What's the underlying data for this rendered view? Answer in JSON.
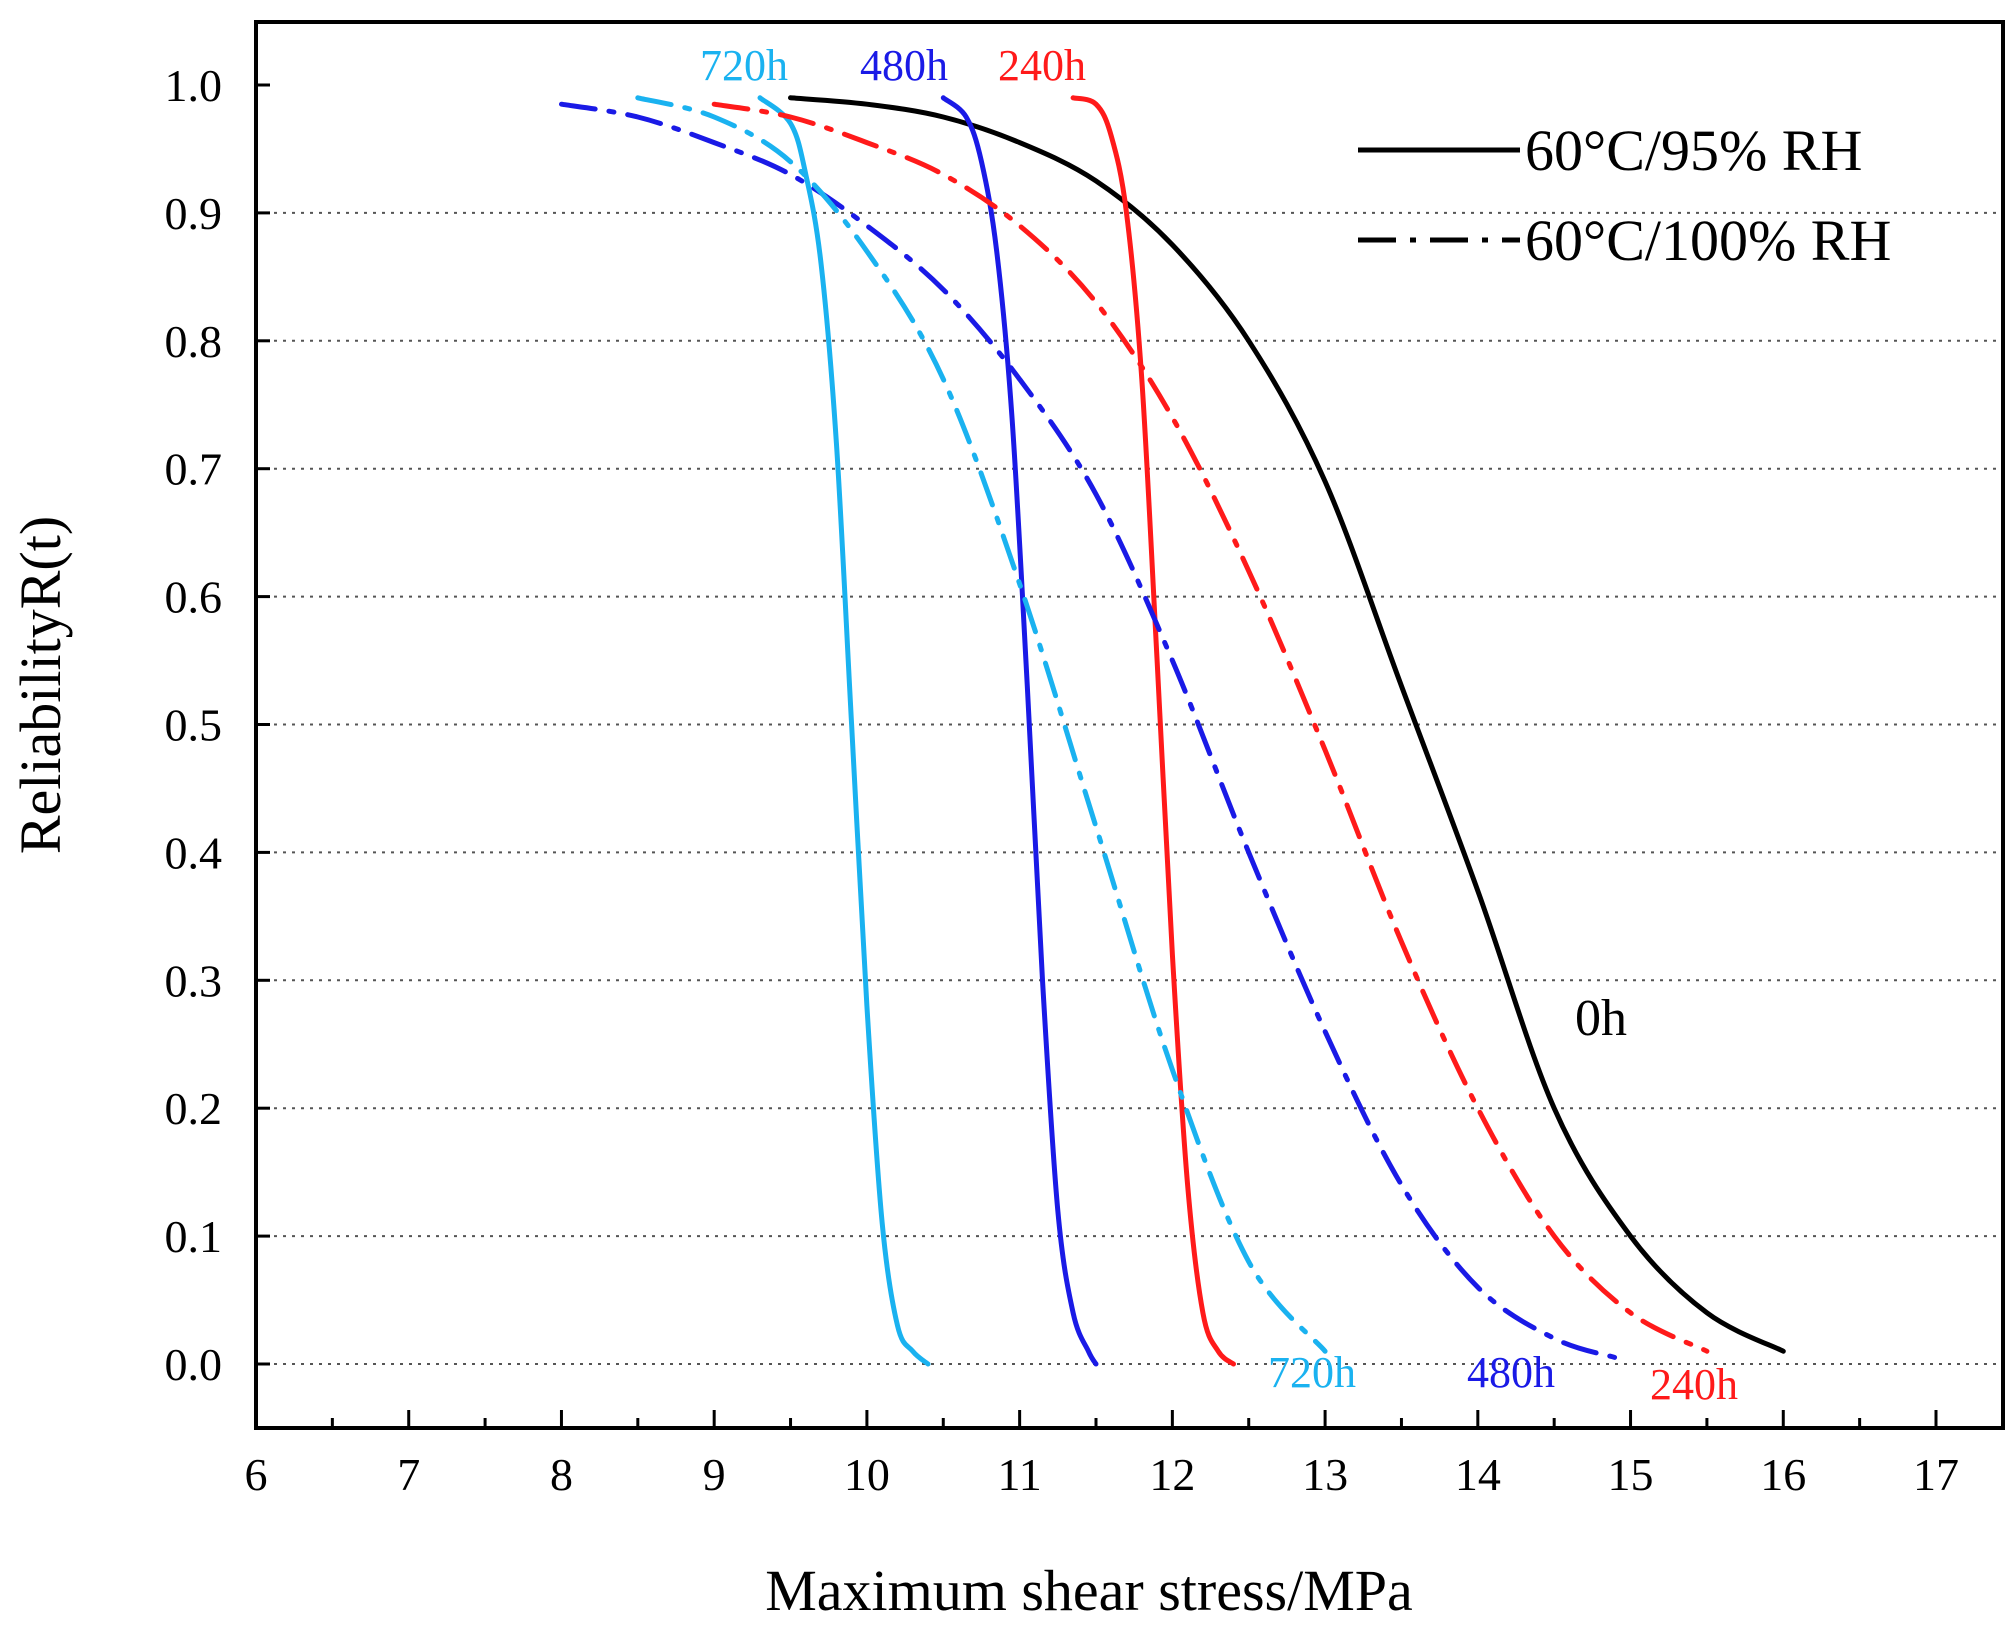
{
  "chart_data": {
    "type": "line",
    "xlabel": "Maximum shear stress/MPa",
    "ylabel": "ReliabilityR(t)",
    "xlim": [
      6,
      17
    ],
    "ylim": [
      0,
      1.0
    ],
    "xticks": [
      "6",
      "7",
      "8",
      "9",
      "10",
      "11",
      "12",
      "13",
      "14",
      "15",
      "16",
      "17"
    ],
    "yticks": [
      "0.0",
      "0.1",
      "0.2",
      "0.3",
      "0.4",
      "0.5",
      "0.6",
      "0.7",
      "0.8",
      "0.9",
      "1.0"
    ],
    "grid": "horizontal-dotted",
    "legend": {
      "position": "top-right",
      "entries": [
        {
          "label": "60°C/95% RH",
          "style": "solid"
        },
        {
          "label": "60°C/100% RH",
          "style": "dash-dot"
        }
      ]
    },
    "colors": {
      "0h": "#000000",
      "240h": "#ff1a1a",
      "480h": "#1a1ae6",
      "720h": "#1ab2f0"
    },
    "annotations": {
      "top_labels": [
        "720h",
        "480h",
        "240h"
      ],
      "bottom_labels": [
        "720h",
        "480h",
        "240h"
      ],
      "zero_label": "0h"
    },
    "series": [
      {
        "name": "0h",
        "condition": "60°C/95% RH",
        "style": "solid",
        "color": "#000000",
        "x": [
          9.5,
          10.0,
          10.5,
          11.0,
          11.5,
          12.0,
          12.5,
          13.0,
          13.5,
          14.0,
          14.5,
          15.0,
          15.5,
          16.0
        ],
        "y": [
          0.99,
          0.985,
          0.975,
          0.955,
          0.925,
          0.875,
          0.8,
          0.69,
          0.53,
          0.37,
          0.2,
          0.1,
          0.04,
          0.01
        ]
      },
      {
        "name": "240h",
        "condition": "60°C/95% RH",
        "style": "solid",
        "color": "#ff1a1a",
        "x": [
          11.35,
          11.5,
          11.6,
          11.7,
          11.8,
          11.9,
          12.0,
          12.1,
          12.2,
          12.3,
          12.4
        ],
        "y": [
          0.99,
          0.985,
          0.96,
          0.9,
          0.77,
          0.55,
          0.32,
          0.14,
          0.04,
          0.01,
          0.0
        ]
      },
      {
        "name": "480h",
        "condition": "60°C/95% RH",
        "style": "solid",
        "color": "#1a1ae6",
        "x": [
          10.5,
          10.65,
          10.75,
          10.85,
          10.95,
          11.05,
          11.15,
          11.25,
          11.35,
          11.45,
          11.5
        ],
        "y": [
          0.99,
          0.975,
          0.94,
          0.87,
          0.74,
          0.53,
          0.3,
          0.12,
          0.04,
          0.01,
          0.0
        ]
      },
      {
        "name": "720h",
        "condition": "60°C/95% RH",
        "style": "solid",
        "color": "#1ab2f0",
        "x": [
          9.3,
          9.5,
          9.6,
          9.7,
          9.8,
          9.9,
          10.0,
          10.1,
          10.2,
          10.3,
          10.4
        ],
        "y": [
          0.99,
          0.97,
          0.93,
          0.86,
          0.72,
          0.5,
          0.28,
          0.11,
          0.03,
          0.01,
          0.0
        ]
      },
      {
        "name": "240h",
        "condition": "60°C/100% RH",
        "style": "dash-dot",
        "color": "#ff1a1a",
        "x": [
          9.0,
          9.5,
          10.0,
          10.5,
          11.0,
          11.5,
          12.0,
          12.5,
          13.0,
          13.5,
          14.0,
          14.5,
          15.0,
          15.5
        ],
        "y": [
          0.985,
          0.975,
          0.955,
          0.93,
          0.89,
          0.83,
          0.74,
          0.62,
          0.48,
          0.33,
          0.2,
          0.1,
          0.04,
          0.01
        ]
      },
      {
        "name": "480h",
        "condition": "60°C/100% RH",
        "style": "dash-dot",
        "color": "#1a1ae6",
        "x": [
          8.0,
          8.5,
          9.0,
          9.5,
          10.0,
          10.5,
          11.0,
          11.5,
          12.0,
          12.5,
          13.0,
          13.5,
          14.0,
          14.5,
          14.9
        ],
        "y": [
          0.985,
          0.975,
          0.955,
          0.93,
          0.89,
          0.84,
          0.77,
          0.68,
          0.55,
          0.4,
          0.26,
          0.14,
          0.06,
          0.02,
          0.005
        ]
      },
      {
        "name": "720h",
        "condition": "60°C/100% RH",
        "style": "dash-dot",
        "color": "#1ab2f0",
        "x": [
          8.5,
          9.0,
          9.5,
          10.0,
          10.5,
          11.0,
          11.5,
          12.0,
          12.5,
          13.0
        ],
        "y": [
          0.99,
          0.975,
          0.94,
          0.87,
          0.77,
          0.61,
          0.42,
          0.23,
          0.08,
          0.01
        ]
      }
    ]
  }
}
